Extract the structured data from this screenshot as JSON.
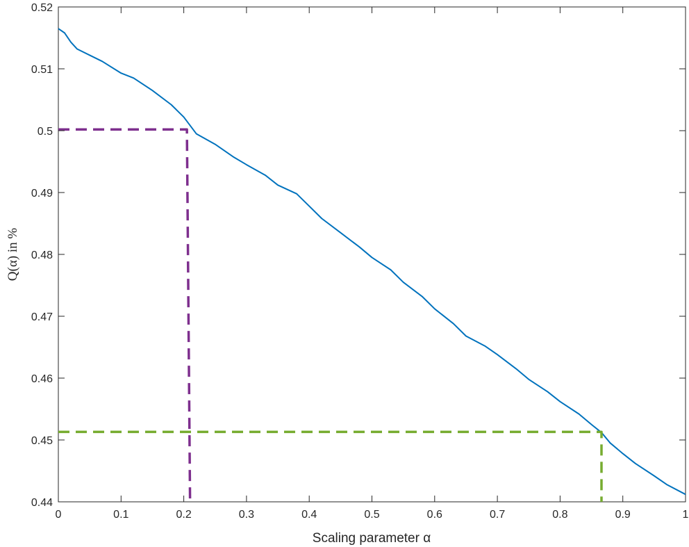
{
  "chart_data": {
    "type": "line",
    "title": "",
    "xlabel": "Scaling parameter α",
    "ylabel": "Q(α) in %",
    "xlim": [
      0,
      1
    ],
    "ylim": [
      0.44,
      0.52
    ],
    "x_ticks": [
      "0",
      "0.1",
      "0.2",
      "0.3",
      "0.4",
      "0.5",
      "0.6",
      "0.7",
      "0.8",
      "0.9",
      "1"
    ],
    "y_ticks": [
      "0.44",
      "0.45",
      "0.46",
      "0.47",
      "0.48",
      "0.49",
      "0.5",
      "0.51",
      "0.52"
    ],
    "grid": false,
    "series": [
      {
        "color": "#0072BD",
        "x": [
          0.0,
          0.01,
          0.02,
          0.03,
          0.05,
          0.07,
          0.1,
          0.12,
          0.15,
          0.18,
          0.2,
          0.22,
          0.25,
          0.28,
          0.3,
          0.33,
          0.35,
          0.38,
          0.4,
          0.42,
          0.45,
          0.48,
          0.5,
          0.53,
          0.55,
          0.58,
          0.6,
          0.63,
          0.65,
          0.68,
          0.7,
          0.73,
          0.75,
          0.78,
          0.8,
          0.83,
          0.85,
          0.866,
          0.88,
          0.9,
          0.92,
          0.95,
          0.97,
          1.0
        ],
        "y": [
          0.5165,
          0.5158,
          0.5143,
          0.5132,
          0.5122,
          0.5112,
          0.5093,
          0.5085,
          0.5065,
          0.5042,
          0.5022,
          0.4995,
          0.4978,
          0.4957,
          0.4945,
          0.4928,
          0.4912,
          0.4898,
          0.4878,
          0.4858,
          0.4835,
          0.4812,
          0.4795,
          0.4775,
          0.4755,
          0.4732,
          0.4712,
          0.4688,
          0.4668,
          0.4652,
          0.4638,
          0.4615,
          0.4598,
          0.4578,
          0.4562,
          0.4542,
          0.4525,
          0.4512,
          0.4495,
          0.4478,
          0.4462,
          0.4442,
          0.4428,
          0.4412
        ]
      },
      {
        "color": "#7E2F8E",
        "style": "dashed",
        "x": [
          0.0,
          0.205,
          0.21
        ],
        "y": [
          0.5002,
          0.5002,
          0.44
        ]
      },
      {
        "color": "#77AC30",
        "style": "dashed",
        "x": [
          0.0,
          0.866,
          0.866
        ],
        "y": [
          0.4513,
          0.4513,
          0.44
        ]
      }
    ]
  }
}
